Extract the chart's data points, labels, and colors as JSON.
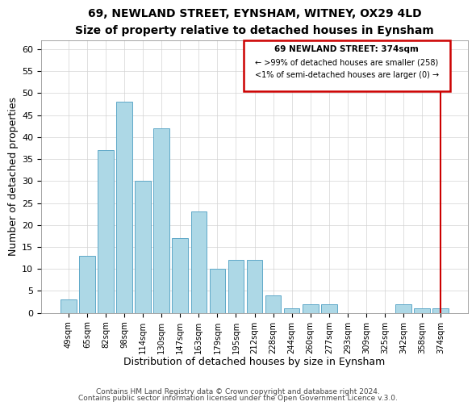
{
  "title": "69, NEWLAND STREET, EYNSHAM, WITNEY, OX29 4LD",
  "subtitle": "Size of property relative to detached houses in Eynsham",
  "xlabel": "Distribution of detached houses by size in Eynsham",
  "ylabel": "Number of detached properties",
  "bar_labels": [
    "49sqm",
    "65sqm",
    "82sqm",
    "98sqm",
    "114sqm",
    "130sqm",
    "147sqm",
    "163sqm",
    "179sqm",
    "195sqm",
    "212sqm",
    "228sqm",
    "244sqm",
    "260sqm",
    "277sqm",
    "293sqm",
    "309sqm",
    "325sqm",
    "342sqm",
    "358sqm",
    "374sqm"
  ],
  "bar_heights": [
    3,
    13,
    37,
    48,
    30,
    42,
    17,
    23,
    10,
    12,
    12,
    4,
    1,
    2,
    2,
    0,
    0,
    0,
    2,
    1,
    1
  ],
  "bar_color": "#add8e6",
  "bar_edge_color": "#5fa8c8",
  "highlight_box_color": "#cc0000",
  "annotation_title": "69 NEWLAND STREET: 374sqm",
  "annotation_line1": "← >99% of detached houses are smaller (258)",
  "annotation_line2": "<1% of semi-detached houses are larger (0) →",
  "ylim": [
    0,
    62
  ],
  "yticks": [
    0,
    5,
    10,
    15,
    20,
    25,
    30,
    35,
    40,
    45,
    50,
    55,
    60
  ],
  "footer1": "Contains HM Land Registry data © Crown copyright and database right 2024.",
  "footer2": "Contains public sector information licensed under the Open Government Licence v.3.0."
}
